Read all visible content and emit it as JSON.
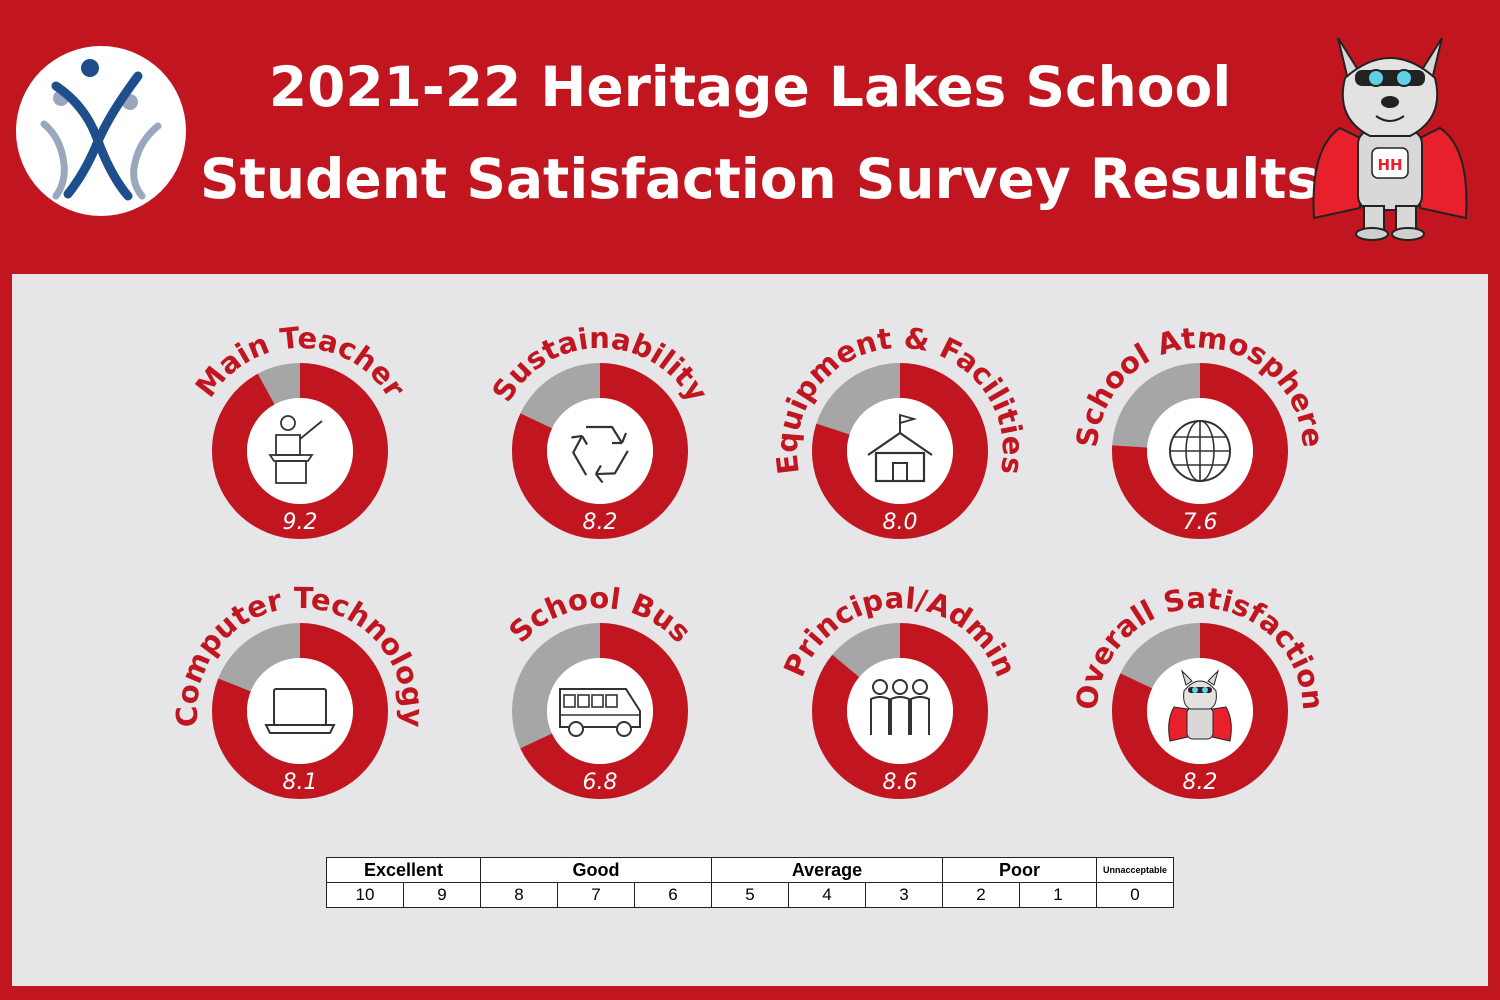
{
  "header": {
    "title_line_1": "2021-22 Heritage Lakes School",
    "title_line_2": "Student Satisfaction Survey Results"
  },
  "colors": {
    "brand_red": "#c1161f",
    "ring_grey": "#a6a6a6",
    "panel_grey": "#e6e6e8",
    "logo_blue": "#1f4e8c",
    "logo_grey": "#9aa7bd"
  },
  "chart_data": {
    "type": "pie",
    "scale_max": 10,
    "items": [
      {
        "label": "Main Teacher",
        "value": 9.2,
        "display": "9.2",
        "icon": "teacher-at-podium-icon"
      },
      {
        "label": "Sustainability",
        "value": 8.2,
        "display": "8.2",
        "icon": "recycle-icon"
      },
      {
        "label": "Equipment & Facilities",
        "value": 8.0,
        "display": "8.0",
        "icon": "schoolhouse-icon"
      },
      {
        "label": "School Atmosphere",
        "value": 7.6,
        "display": "7.6",
        "icon": "globe-icon"
      },
      {
        "label": "Computer Technology",
        "value": 8.1,
        "display": "8.1",
        "icon": "laptop-icon"
      },
      {
        "label": "School Bus",
        "value": 6.8,
        "display": "6.8",
        "icon": "school-bus-icon"
      },
      {
        "label": "Principal/Admin",
        "value": 8.6,
        "display": "8.6",
        "icon": "people-group-icon"
      },
      {
        "label": "Overall Satisfaction",
        "value": 8.2,
        "display": "8.2",
        "icon": "mascot-icon"
      }
    ]
  },
  "legend": {
    "categories": [
      {
        "label": "Excellent",
        "span": 2
      },
      {
        "label": "Good",
        "span": 3
      },
      {
        "label": "Average",
        "span": 3
      },
      {
        "label": "Poor",
        "span": 2
      },
      {
        "label": "Unnacceptable",
        "span": 1
      }
    ],
    "values": [
      "10",
      "9",
      "8",
      "7",
      "6",
      "5",
      "4",
      "3",
      "2",
      "1",
      "0"
    ]
  }
}
